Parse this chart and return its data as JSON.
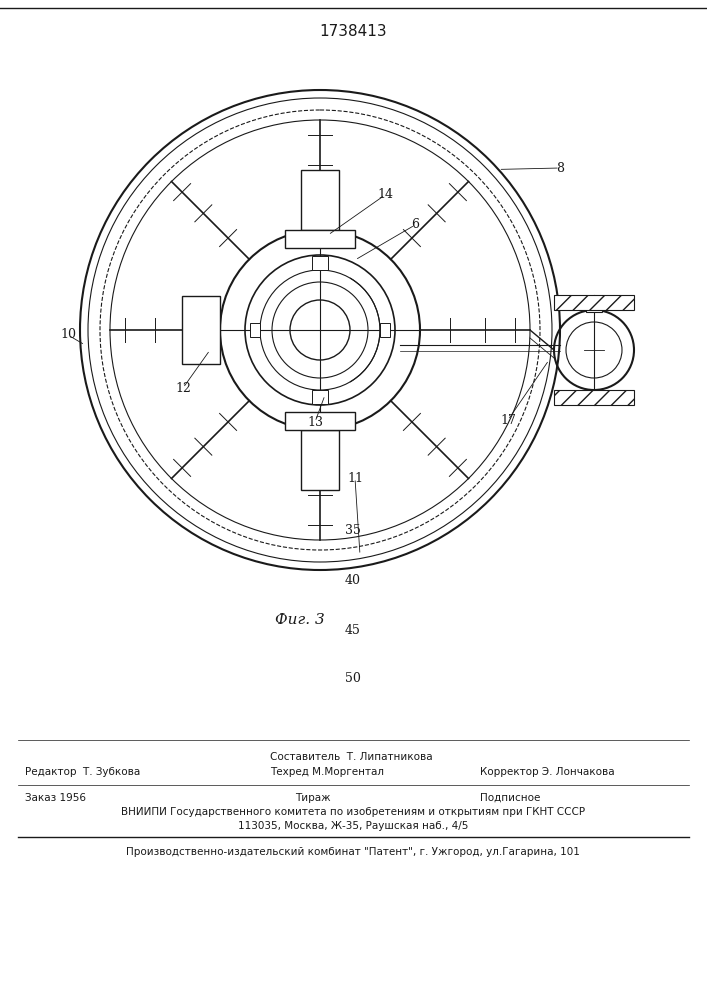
{
  "title": "1738413",
  "fig_label": "Фиг. 3",
  "page_numbers": [
    "35",
    "40",
    "45",
    "50"
  ],
  "footer_line1_center_top": "Составитель  Т. Липатникова",
  "footer_line1_left": "Редактор  Т. Зубкова",
  "footer_line1_center": "Техред М.Моргентал",
  "footer_line1_right": "Корректор Э. Лончакова",
  "footer_line2_left": "Заказ 1956",
  "footer_line2_center": "Тираж",
  "footer_line2_right": "Подписное",
  "footer_line3": "ВНИИПИ Государственного комитета по изобретениям и открытиям при ГКНТ СССР",
  "footer_line4": "113035, Москва, Ж-35, Раушская наб., 4/5",
  "footer_line5": "Производственно-издательский комбинат \"Патент\", г. Ужгород, ул.Гагарина, 101",
  "bg_color": "#ffffff",
  "line_color": "#1a1a1a"
}
